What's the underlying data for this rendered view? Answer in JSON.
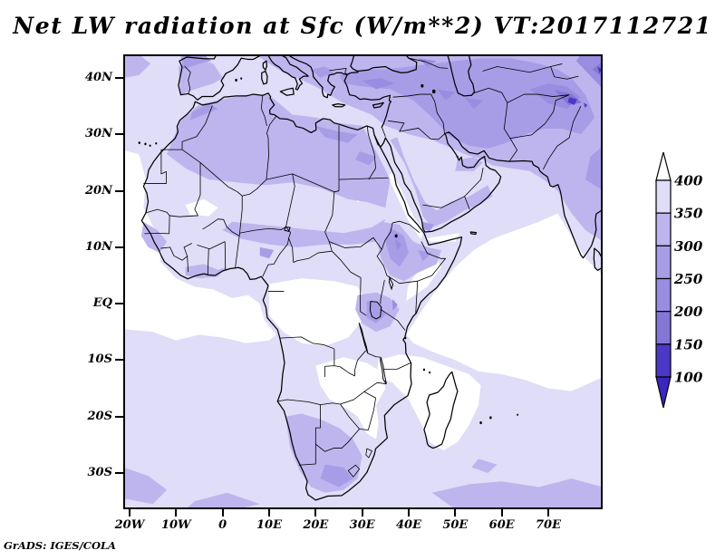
{
  "title": "Net LW radiation at Sfc (W/m**2) VT:2017112721",
  "attribution": "GrADS: IGES/COLA",
  "palette": {
    "gt400": "#ffffff",
    "b350_400": "#dfddf7",
    "b300_350": "#beb5ef",
    "b250_300": "#a79de7",
    "b200_250": "#988de1",
    "b150_200": "#8376d7",
    "b100_150": "#4b38c6",
    "lt100": "#3a27be"
  },
  "axes": {
    "lat_ticks": [
      {
        "label": "40N",
        "lat": 40
      },
      {
        "label": "30N",
        "lat": 30
      },
      {
        "label": "20N",
        "lat": 20
      },
      {
        "label": "10N",
        "lat": 10
      },
      {
        "label": "EQ",
        "lat": 0
      },
      {
        "label": "10S",
        "lat": -10
      },
      {
        "label": "20S",
        "lat": -20
      },
      {
        "label": "30S",
        "lat": -30
      }
    ],
    "lon_ticks": [
      {
        "label": "20W",
        "lon": -20
      },
      {
        "label": "10W",
        "lon": -10
      },
      {
        "label": "0",
        "lon": 0
      },
      {
        "label": "10E",
        "lon": 10
      },
      {
        "label": "20E",
        "lon": 20
      },
      {
        "label": "30E",
        "lon": 30
      },
      {
        "label": "40E",
        "lon": 40
      },
      {
        "label": "50E",
        "lon": 50
      },
      {
        "label": "60E",
        "lon": 60
      },
      {
        "label": "70E",
        "lon": 70
      }
    ]
  },
  "colorbar": {
    "tick_labels": [
      "400",
      "350",
      "300",
      "250",
      "200",
      "150",
      "100"
    ],
    "levels": [
      {
        "range": ">400",
        "palette": "gt400"
      },
      {
        "range": "350-400",
        "palette": "b350_400"
      },
      {
        "range": "300-350",
        "palette": "b300_350"
      },
      {
        "range": "250-300",
        "palette": "b250_300"
      },
      {
        "range": "200-250",
        "palette": "b200_250"
      },
      {
        "range": "150-200",
        "palette": "b150_200"
      },
      {
        "range": "100-150",
        "palette": "b100_150"
      },
      {
        "range": "<100",
        "palette": "lt100"
      }
    ]
  },
  "chart_data": {
    "type": "heatmap",
    "title": "Net LW radiation at Sfc (W/m**2) VT:2017112721",
    "variable": "Net longwave radiation at surface",
    "units": "W/m**2",
    "valid_time_label": "VT:2017112721",
    "xlabel": "longitude",
    "ylabel": "latitude",
    "lon_range": [
      -21.4,
      81.7
    ],
    "lat_range": [
      -36.4,
      44.2
    ],
    "contour_levels": [
      100,
      150,
      200,
      250,
      300,
      350,
      400
    ],
    "legend_position": "right",
    "region_estimates": [
      {
        "region": "Tropical Atlantic / Gulf of Guinea ocean",
        "value_wm2": ">400"
      },
      {
        "region": "Arabian Sea / NW Indian Ocean",
        "value_wm2": ">400"
      },
      {
        "region": "Congo Basin and equatorial Africa",
        "value_wm2": "350-400"
      },
      {
        "region": "Sahel band (10-15N)",
        "value_wm2": "300-350"
      },
      {
        "region": "Central Sahara / Libya / Egypt",
        "value_wm2": "300-350"
      },
      {
        "region": "Arabian Peninsula interior",
        "value_wm2": "350-400"
      },
      {
        "region": "Mediterranean, Turkey, Balkans",
        "value_wm2": "250-300"
      },
      {
        "region": "Iran / Caucasus / Central Asia",
        "value_wm2": "250-300"
      },
      {
        "region": "Ethiopian Highlands, Lake Victoria area",
        "value_wm2": "250-300"
      },
      {
        "region": "South African plateau",
        "value_wm2": "250-300"
      },
      {
        "region": "Southern Ocean south of 30S",
        "value_wm2": "300-350"
      },
      {
        "region": "Hindu Kush / Karakoram (NE corner)",
        "value_wm2": "100-200"
      }
    ]
  }
}
